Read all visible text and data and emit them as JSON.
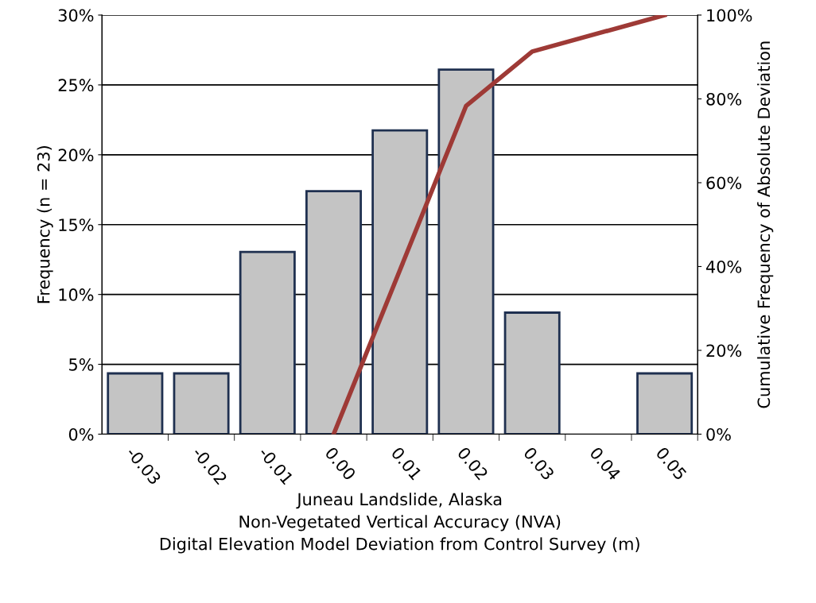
{
  "chart_data": {
    "type": "bar",
    "xlabel": "Juneau Landslide, Alaska\nNon-Vegetated Vertical Accuracy (NVA)\nDigital Elevation Model Deviation from Control Survey (m)",
    "ylabel": "Frequency (n = 23)",
    "y2label": "Cumulative Frequency of Absolute Deviation",
    "categories": [
      "-0.03",
      "-0.02",
      "-0.01",
      "0.00",
      "0.01",
      "0.02",
      "0.03",
      "0.04",
      "0.05"
    ],
    "series": [
      {
        "color": "#c4c4c4",
        "values": [
          4.35,
          4.35,
          13.04,
          17.39,
          21.74,
          26.09,
          8.7,
          null,
          4.35
        ]
      },
      {
        "type": "line",
        "axis": "y2",
        "color": "#9e3a36",
        "values": [
          null,
          null,
          null,
          0,
          39.1,
          78.3,
          91.3,
          null,
          100
        ]
      }
    ],
    "ylim": [
      0,
      30
    ],
    "yticks": [
      {
        "value": 0,
        "label": "0%"
      },
      {
        "value": 5,
        "label": "5%"
      },
      {
        "value": 10,
        "label": "10%"
      },
      {
        "value": 15,
        "label": "15%"
      },
      {
        "value": 20,
        "label": "20%"
      },
      {
        "value": 25,
        "label": "25%"
      },
      {
        "value": 30,
        "label": "30%"
      }
    ],
    "y2lim": [
      0,
      100
    ],
    "y2ticks": [
      {
        "value": 0,
        "label": "0%"
      },
      {
        "value": 20,
        "label": "20%"
      },
      {
        "value": 40,
        "label": "40%"
      },
      {
        "value": 60,
        "label": "60%"
      },
      {
        "value": 80,
        "label": "80%"
      },
      {
        "value": 100,
        "label": "100%"
      }
    ],
    "grid": "y",
    "legend": false
  }
}
